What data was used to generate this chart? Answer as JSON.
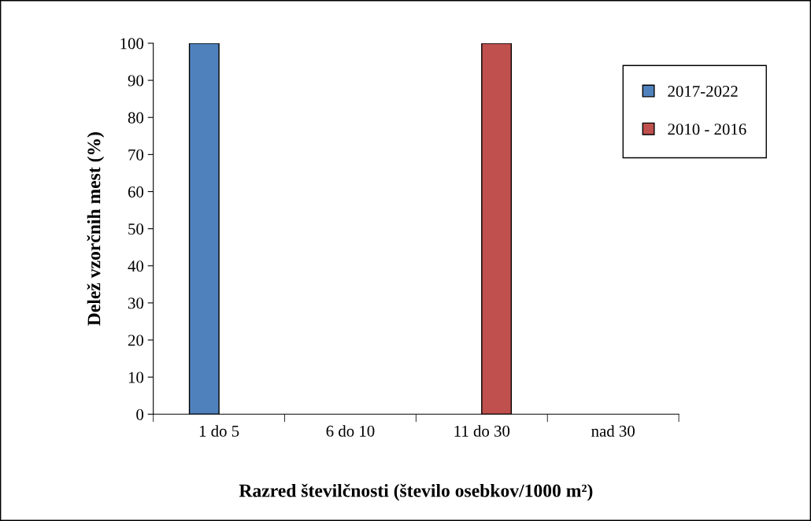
{
  "chart_data": {
    "type": "bar",
    "xlabel": "Razred številčnosti (število osebkov/1000 m²)",
    "ylabel": "Delež vzorčnih mest (%)",
    "categories": [
      "1 do 5",
      "6 do 10",
      "11 do 30",
      "nad 30"
    ],
    "series": [
      {
        "name": "2017-2022",
        "color": "#4f81bd",
        "values": [
          100,
          0,
          0,
          0
        ]
      },
      {
        "name": "2010 - 2016",
        "color": "#c0504d",
        "values": [
          0,
          0,
          100,
          0
        ]
      }
    ],
    "ylim": [
      0,
      100
    ],
    "yticks": [
      0,
      10,
      20,
      30,
      40,
      50,
      60,
      70,
      80,
      90,
      100
    ],
    "grid": false,
    "legend": "top right"
  }
}
